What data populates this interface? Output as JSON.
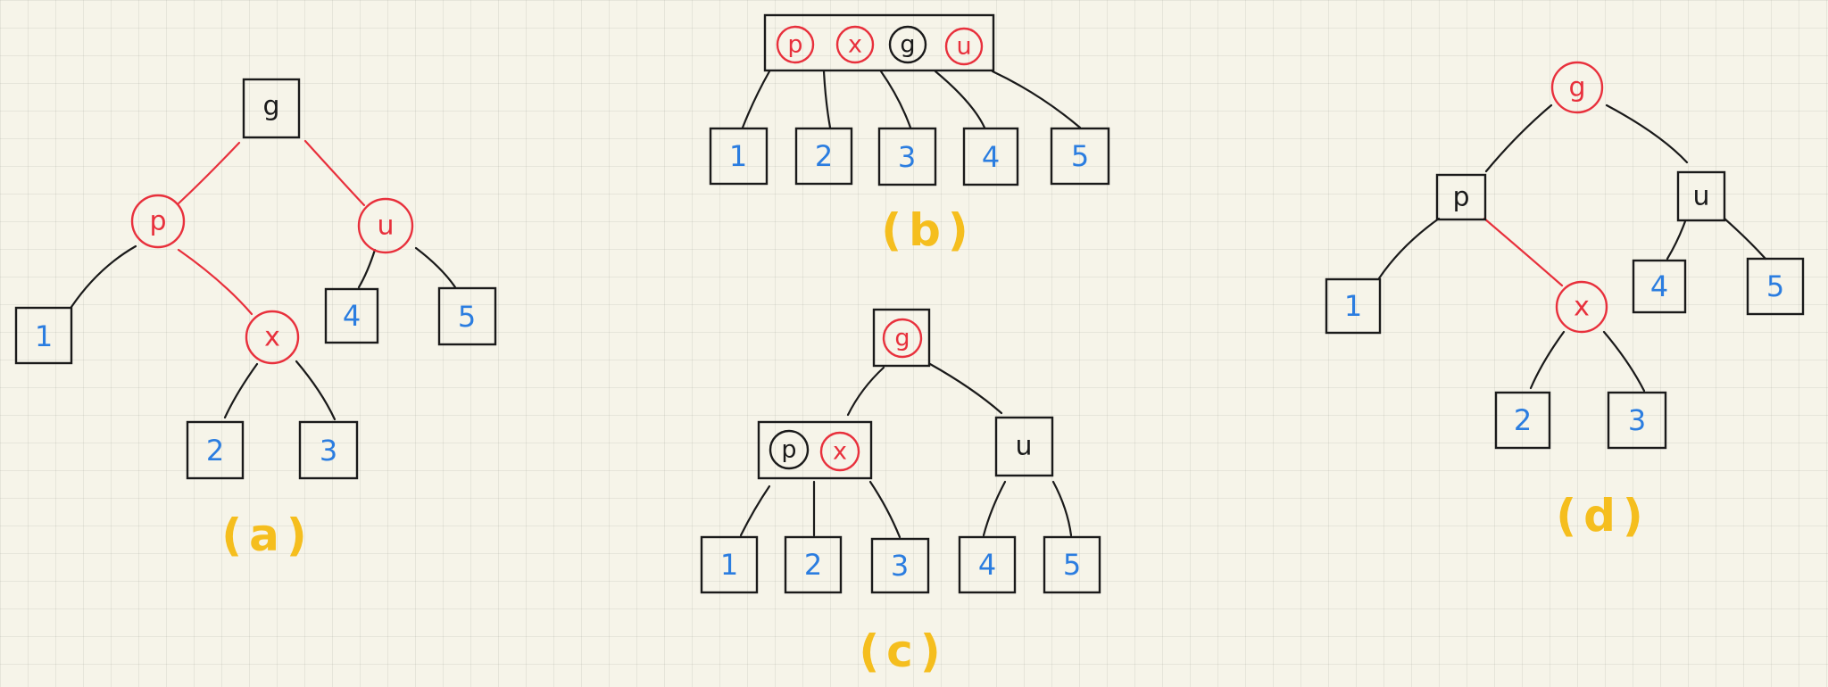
{
  "diagrams": {
    "a": {
      "caption": "(a)",
      "nodes": {
        "g": "g",
        "p": "p",
        "u": "u",
        "x": "x"
      },
      "leaves": [
        "1",
        "2",
        "3",
        "4",
        "5"
      ]
    },
    "b": {
      "caption": "(b)",
      "nodes": {
        "p": "p",
        "x": "x",
        "g": "g",
        "u": "u"
      },
      "leaves": [
        "1",
        "2",
        "3",
        "4",
        "5"
      ]
    },
    "c": {
      "caption": "(c)",
      "nodes": {
        "g": "g",
        "p": "p",
        "x": "x",
        "u": "u"
      },
      "leaves": [
        "1",
        "2",
        "3",
        "4",
        "5"
      ]
    },
    "d": {
      "caption": "(d)",
      "nodes": {
        "g": "g",
        "p": "p",
        "u": "u",
        "x": "x"
      },
      "leaves": [
        "1",
        "2",
        "3",
        "4",
        "5"
      ]
    }
  },
  "colors": {
    "red": "#e8303c",
    "black": "#1a1a1a",
    "blue": "#2b7de0",
    "caption": "#f5be1e"
  }
}
